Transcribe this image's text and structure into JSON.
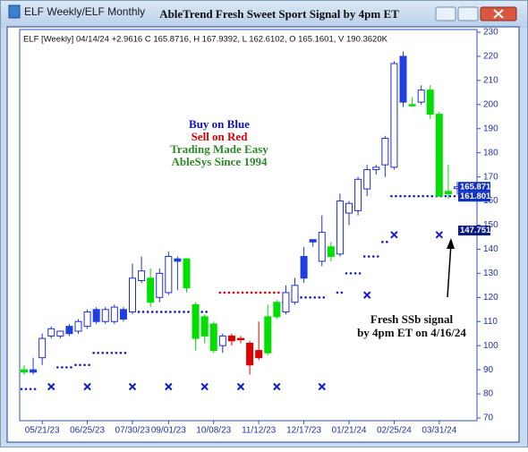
{
  "chart_data": {
    "type": "candlestick",
    "tab": "ELF Weekly/ELF Monthly",
    "title": "AbleTrend Fresh Sweet Sport Signal by 4pm ET",
    "header": "ELF [Weekly] 04/14/24 +2.9616 C 165.8716, H 167.9392, L 162.6102, O 165.1601, V 190.3620K",
    "annotations": [
      "Buy on Blue",
      "Sell on Red",
      "Trading Made Easy",
      "AbleSys Since 1994"
    ],
    "annotation_colors": [
      "#1010d0",
      "#e00000",
      "#2a8a2a",
      "#2a8a2a"
    ],
    "note": [
      "Fresh SSb signal",
      "by 4pm ET on 4/16/24"
    ],
    "categories": [
      null,
      null,
      "05/21/23",
      null,
      null,
      null,
      null,
      "06/25/23",
      null,
      null,
      null,
      null,
      "07/30/23",
      null,
      null,
      null,
      "09/01/23",
      null,
      null,
      null,
      null,
      "10/08/23",
      null,
      null,
      null,
      null,
      "11/12/23",
      null,
      null,
      null,
      null,
      "12/17/23",
      null,
      null,
      null,
      null,
      "01/21/24",
      null,
      null,
      null,
      null,
      "02/25/24",
      null,
      null,
      null,
      null,
      "03/31/24",
      null,
      null
    ],
    "open": [
      89,
      89,
      95,
      104,
      104,
      105,
      106,
      108,
      110,
      110,
      110,
      111,
      114,
      127,
      128,
      120,
      122,
      136,
      136,
      117,
      112,
      109,
      100,
      104,
      103,
      101,
      98,
      97,
      112,
      114,
      118,
      128,
      143,
      135,
      141,
      138,
      155,
      156,
      165,
      173,
      175,
      174,
      220,
      200,
      201,
      206,
      196,
      164,
      165.1601
    ],
    "high": [
      92,
      95,
      105,
      108,
      106,
      109,
      111,
      115,
      116,
      116,
      117,
      116,
      134,
      137,
      132,
      132,
      139,
      137,
      136,
      118,
      113,
      110,
      105,
      105,
      104,
      102,
      110,
      117,
      119,
      125,
      128,
      141,
      144,
      154,
      143,
      163,
      160,
      170,
      175,
      175,
      187,
      218,
      222,
      203,
      208,
      208,
      197,
      175,
      167.9392
    ],
    "low": [
      88,
      88,
      92,
      103,
      103,
      104,
      105,
      107,
      109,
      109,
      109,
      110,
      113,
      126,
      116,
      118,
      121,
      123,
      122,
      98,
      101,
      97,
      97,
      100,
      101,
      88,
      94,
      96,
      111,
      113,
      117,
      126,
      141,
      133,
      135,
      137,
      150,
      154,
      162,
      171,
      170,
      173,
      199,
      199,
      200,
      194,
      162,
      161,
      162.6102
    ],
    "close": [
      90,
      90,
      103,
      107,
      106,
      108,
      110,
      114,
      115,
      115,
      116,
      115,
      128,
      131,
      118,
      130,
      137,
      135,
      124,
      103,
      104,
      98,
      104,
      102,
      103,
      92,
      95,
      112,
      118,
      122,
      125,
      137,
      144,
      147,
      137,
      160,
      159,
      169,
      173,
      174,
      186,
      217,
      201,
      200,
      206,
      196,
      162,
      163,
      165.8716
    ],
    "kind": [
      "G",
      "B",
      "H",
      "H",
      "H",
      "B",
      "H",
      "H",
      "B",
      "H",
      "H",
      "B",
      "H",
      "H",
      "G",
      "H",
      "H",
      "B",
      "G",
      "G",
      "G",
      "G",
      "H",
      "R",
      "R",
      "R",
      "R",
      "G",
      "G",
      "H",
      "H",
      "B",
      "B",
      "H",
      "G",
      "H",
      "H",
      "H",
      "H",
      "H",
      "H",
      "H",
      "B",
      "G",
      "H",
      "G",
      "G",
      "G",
      "H"
    ],
    "colors": {
      "H": "#ffffff",
      "B": "#1f3fe0",
      "G": "#00e000",
      "R": "#e00000",
      "outline": "#1f2fd0"
    },
    "blue_stop": [
      82,
      82,
      null,
      null,
      91,
      91,
      92,
      92,
      97,
      97,
      97,
      97,
      null,
      114,
      114,
      114,
      114,
      114,
      114,
      114,
      114,
      null,
      null,
      null,
      null,
      null,
      null,
      null,
      null,
      118,
      119,
      120,
      120,
      120,
      null,
      122,
      130,
      130,
      137,
      137,
      143,
      162,
      162,
      162,
      162,
      162,
      162,
      162,
      162
    ],
    "red_stop": [
      null,
      null,
      null,
      null,
      null,
      null,
      null,
      null,
      null,
      null,
      null,
      null,
      null,
      null,
      null,
      null,
      null,
      null,
      null,
      null,
      null,
      null,
      122,
      122,
      122,
      122,
      122,
      122,
      122,
      null,
      null,
      null,
      null,
      null,
      null,
      null,
      null,
      null,
      null,
      null,
      null,
      null,
      null,
      null,
      null,
      null,
      null,
      null,
      null
    ],
    "stop_colors": {
      "blue": "#1a1ad0",
      "red": "#e00000"
    },
    "signals": [
      {
        "index": 3,
        "value": 83
      },
      {
        "index": 7,
        "value": 83
      },
      {
        "index": 12,
        "value": 83
      },
      {
        "index": 16,
        "value": 83
      },
      {
        "index": 20,
        "value": 83
      },
      {
        "index": 24,
        "value": 83
      },
      {
        "index": 28,
        "value": 83
      },
      {
        "index": 33,
        "value": 83
      },
      {
        "index": 38,
        "value": 121
      },
      {
        "index": 41,
        "value": 146
      },
      {
        "index": 46,
        "value": 146
      }
    ],
    "price_labels": [
      {
        "value": 165.871,
        "bg": "#1030c0"
      },
      {
        "value": 161.801,
        "bg": "#1030c0"
      },
      {
        "value": 147.751,
        "bg": "#0a1a80"
      }
    ],
    "ylim": [
      70,
      230
    ],
    "yticks": [
      70,
      80,
      90,
      100,
      110,
      120,
      130,
      140,
      150,
      160,
      170,
      180,
      190,
      200,
      210,
      220,
      230
    ]
  }
}
